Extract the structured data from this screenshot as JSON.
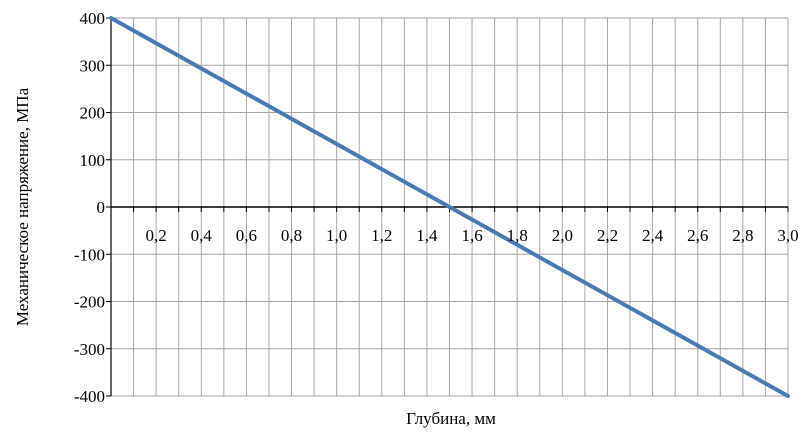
{
  "chart_data": {
    "type": "line",
    "title": "",
    "xlabel": "Глубина, мм",
    "ylabel": "Механическое напряжение, МПа",
    "xlim": [
      0,
      3.0
    ],
    "ylim": [
      -400,
      400
    ],
    "grid": true,
    "x_ticks": [
      {
        "value": 0.2,
        "label": "0,2"
      },
      {
        "value": 0.4,
        "label": "0,4"
      },
      {
        "value": 0.6,
        "label": "0,6"
      },
      {
        "value": 0.8,
        "label": "0,8"
      },
      {
        "value": 1.0,
        "label": "1,0"
      },
      {
        "value": 1.2,
        "label": "1,2"
      },
      {
        "value": 1.4,
        "label": "1,4"
      },
      {
        "value": 1.6,
        "label": "1,6"
      },
      {
        "value": 1.8,
        "label": "1,8"
      },
      {
        "value": 2.0,
        "label": "2,0"
      },
      {
        "value": 2.2,
        "label": "2,2"
      },
      {
        "value": 2.4,
        "label": "2,4"
      },
      {
        "value": 2.6,
        "label": "2,6"
      },
      {
        "value": 2.8,
        "label": "2,8"
      },
      {
        "value": 3.0,
        "label": "3,0"
      }
    ],
    "y_ticks": [
      {
        "value": 400,
        "label": "400"
      },
      {
        "value": 300,
        "label": "300"
      },
      {
        "value": 200,
        "label": "200"
      },
      {
        "value": 100,
        "label": "100"
      },
      {
        "value": 0,
        "label": "0"
      },
      {
        "value": -100,
        "label": "-100"
      },
      {
        "value": -200,
        "label": "-200"
      },
      {
        "value": -300,
        "label": "-300"
      },
      {
        "value": -400,
        "label": "-400"
      }
    ],
    "series": [
      {
        "color": "#4a7ab5",
        "x": [
          0,
          3.0
        ],
        "y": [
          400,
          -400
        ]
      }
    ]
  }
}
